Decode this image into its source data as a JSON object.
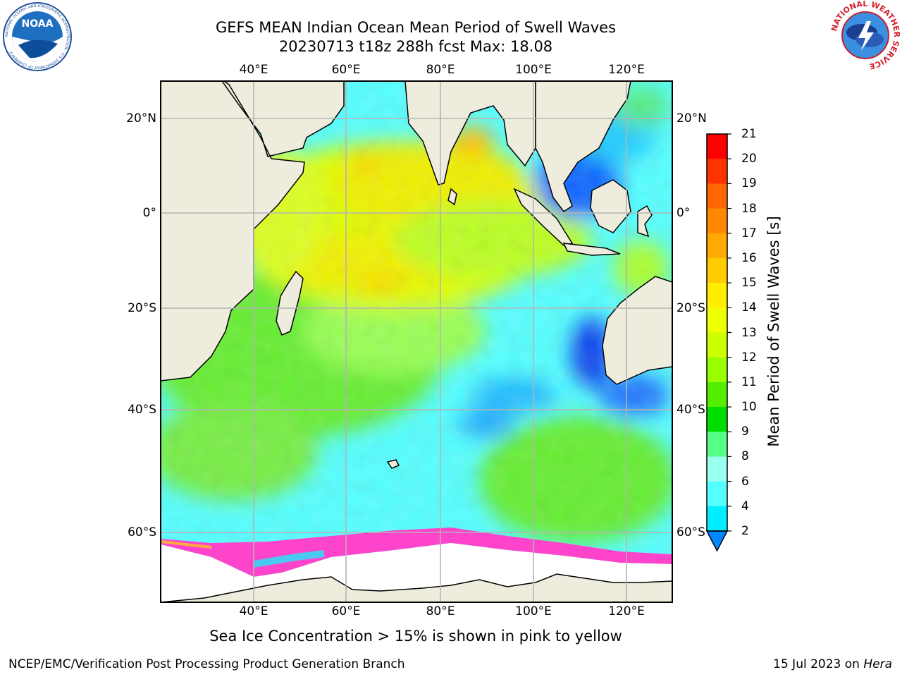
{
  "header": {
    "title_line1": "GEFS MEAN Indian Ocean Mean Period of Swell Waves",
    "title_line2": "20230713 t18z 288h fcst   Max: 18.08"
  },
  "map": {
    "projection": "cylindrical",
    "lon_range": [
      20,
      130
    ],
    "lat_range": [
      -72,
      28
    ],
    "top_lon_labels": [
      "40°E",
      "60°E",
      "80°E",
      "100°E",
      "120°E"
    ],
    "bottom_lon_labels": [
      "40°E",
      "60°E",
      "80°E",
      "100°E",
      "120°E"
    ],
    "left_lat_labels": [
      "20°N",
      "0°",
      "20°S",
      "40°S",
      "60°S"
    ],
    "right_lat_labels": [
      "20°N",
      "0°",
      "20°S",
      "40°S",
      "60°S"
    ],
    "gridlines": true,
    "land_color": "#eeecdc",
    "sea_ice_color": "#ff55dd"
  },
  "colorbar": {
    "label": "Mean Period of Swell Waves [s]",
    "ticks": [
      "21",
      "20",
      "19",
      "18",
      "17",
      "16",
      "15",
      "14",
      "13",
      "12",
      "11",
      "10",
      "9",
      "8",
      "6",
      "4",
      "2"
    ],
    "colors": [
      "#ff0000",
      "#ff3300",
      "#ff6600",
      "#ff8800",
      "#ffaa00",
      "#ffcc00",
      "#ffee00",
      "#eeff00",
      "#ccff00",
      "#99ff00",
      "#55ee00",
      "#00dd00",
      "#55ff88",
      "#99ffee",
      "#55ffff",
      "#00eeff",
      "#0088ff",
      "#0000ee"
    ],
    "extend": "min"
  },
  "note": "Sea Ice Concentration > 15% is shown in pink to yellow",
  "footer": {
    "left": "NCEP/EMC/Verification Post Processing Product Generation Branch",
    "right_prefix": "15 Jul 2023 on ",
    "right_italic": "Hera"
  },
  "logos": {
    "noaa": "NOAA",
    "noaa_ring": "NATIONAL OCEANIC AND ATMOSPHERIC ADMINISTRATION · U.S. DEPARTMENT OF COMMERCE",
    "nws_ring": "NATIONAL WEATHER SERVICE"
  }
}
